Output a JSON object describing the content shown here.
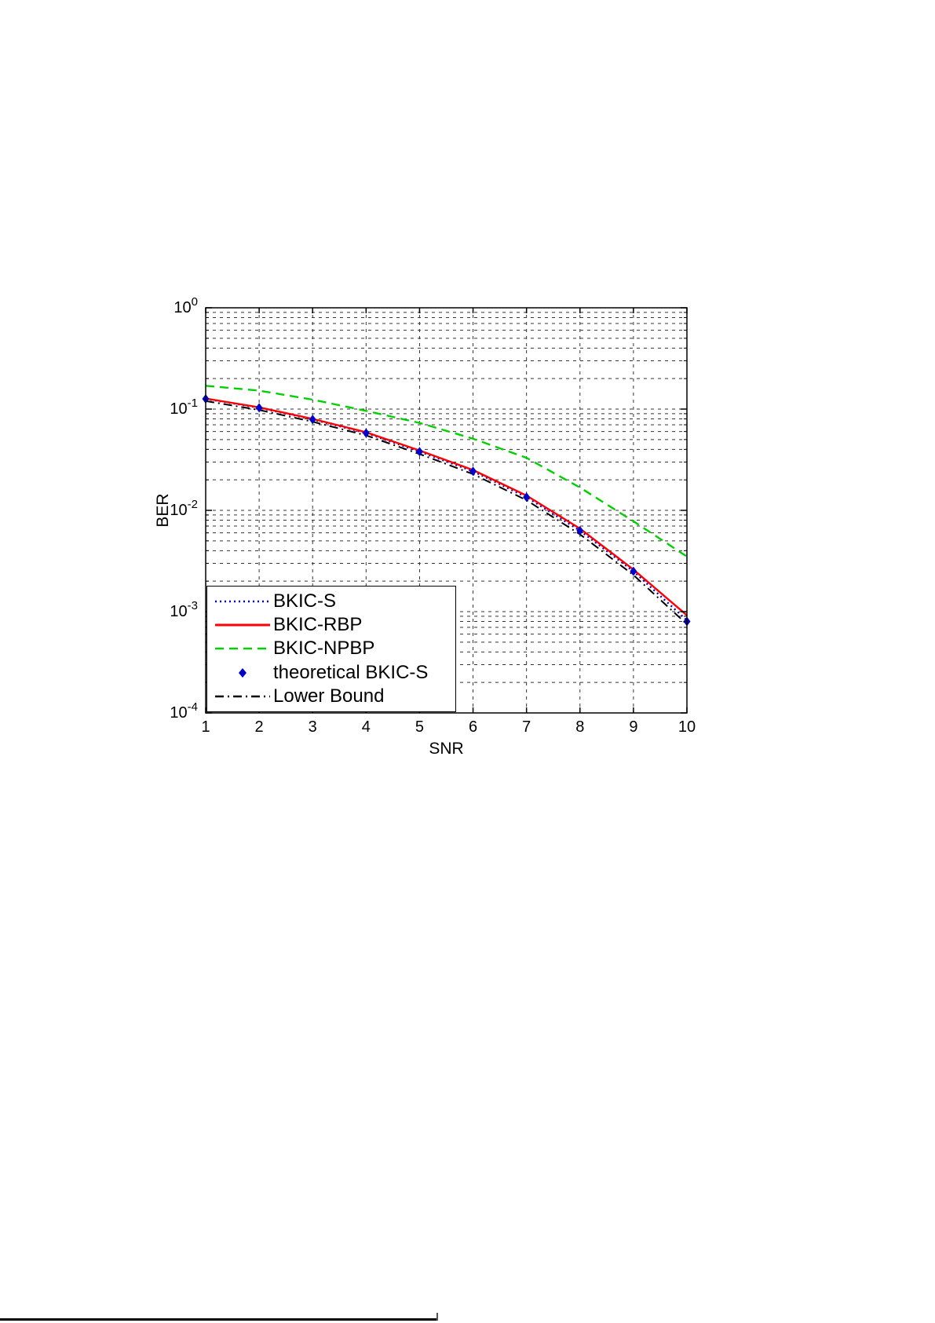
{
  "page": {
    "background": "#ffffff"
  },
  "chart_data": {
    "type": "line",
    "title": "",
    "xlabel": "SNR",
    "ylabel": "BER",
    "x_range": [
      1,
      10
    ],
    "y_scale": "log10",
    "y_range": [
      0.0001,
      1
    ],
    "x_ticks": [
      1,
      2,
      3,
      4,
      5,
      6,
      7,
      8,
      9,
      10
    ],
    "y_tick_exponents": [
      0,
      -1,
      -2,
      -3,
      -4
    ],
    "grid": true,
    "grid_color": "#333333",
    "axis_color": "#000000",
    "legend_position": "lower-left",
    "x": [
      1,
      2,
      3,
      4,
      5,
      6,
      7,
      8,
      9,
      10
    ],
    "series": [
      {
        "name": "BKIC-S",
        "color": "#0000cc",
        "style": "dotted",
        "values": [
          0.126,
          0.103,
          0.079,
          0.058,
          0.038,
          0.0243,
          0.0135,
          0.0063,
          0.0025,
          0.00082
        ]
      },
      {
        "name": "BKIC-RBP",
        "color": "#ff0000",
        "style": "solid",
        "values": [
          0.127,
          0.104,
          0.08,
          0.059,
          0.039,
          0.025,
          0.014,
          0.0066,
          0.0026,
          0.00092
        ]
      },
      {
        "name": "BKIC-NPBP",
        "color": "#00d000",
        "style": "dashed",
        "values": [
          0.17,
          0.152,
          0.124,
          0.096,
          0.073,
          0.051,
          0.033,
          0.0168,
          0.0078,
          0.0035
        ]
      },
      {
        "name": "theoretical BKIC-S",
        "color": "#0000cc",
        "style": "marker",
        "marker": "diamond",
        "values": [
          0.126,
          0.103,
          0.079,
          0.058,
          0.038,
          0.0243,
          0.0135,
          0.0063,
          0.0025,
          0.0008
        ]
      },
      {
        "name": "Lower Bound",
        "color": "#000000",
        "style": "dashdot",
        "values": [
          0.12,
          0.098,
          0.075,
          0.055,
          0.036,
          0.0228,
          0.0126,
          0.0058,
          0.0023,
          0.00075
        ]
      }
    ]
  }
}
